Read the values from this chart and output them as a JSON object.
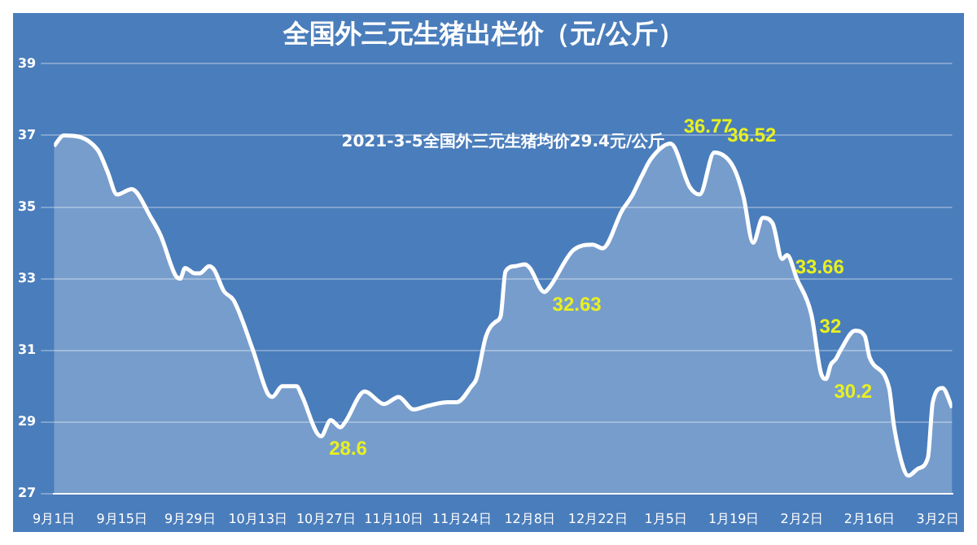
{
  "chart_data": {
    "type": "area",
    "title": "全国外三元生猪出栏价（元/公斤）",
    "annotations": [
      "2021-3-5全国外三元生猪均价29.4元/公斤",
      {
        "text": "28.6",
        "x": "2020-10-26",
        "y": 28.6
      },
      {
        "text": "32.63",
        "x": "2020-12-11",
        "y": 32.63
      },
      {
        "text": "36.77",
        "x": "2021-01-06",
        "y": 36.77
      },
      {
        "text": "36.52",
        "x": "2021-01-15",
        "y": 36.52
      },
      {
        "text": "33.66",
        "x": "2021-01-30",
        "y": 33.66
      },
      {
        "text": "32",
        "x": "2021-02-04",
        "y": 32
      },
      {
        "text": "30.2",
        "x": "2021-02-07",
        "y": 30.2
      }
    ],
    "x": [
      "2020-09-01",
      "2020-09-03",
      "2020-09-10",
      "2020-09-12",
      "2020-09-14",
      "2020-09-17",
      "2020-09-21",
      "2020-09-23",
      "2020-09-26",
      "2020-09-27",
      "2020-09-28",
      "2020-09-30",
      "2020-10-01",
      "2020-10-03",
      "2020-10-04",
      "2020-10-06",
      "2020-10-08",
      "2020-10-12",
      "2020-10-15",
      "2020-10-16",
      "2020-10-18",
      "2020-10-21",
      "2020-10-22",
      "2020-10-26",
      "2020-10-28",
      "2020-10-30",
      "2020-10-31",
      "2020-11-04",
      "2020-11-08",
      "2020-11-11",
      "2020-11-14",
      "2020-11-17",
      "2020-11-21",
      "2020-11-23",
      "2020-11-26",
      "2020-11-27",
      "2020-11-29",
      "2020-12-01",
      "2020-12-02",
      "2020-12-03",
      "2020-12-05",
      "2020-12-07",
      "2020-12-08",
      "2020-12-11",
      "2020-12-12",
      "2020-12-17",
      "2020-12-21",
      "2020-12-23",
      "2020-12-27",
      "2020-12-29",
      "2020-12-31",
      "2021-01-02",
      "2021-01-06",
      "2021-01-10",
      "2021-01-12",
      "2021-01-15",
      "2021-01-19",
      "2021-01-21",
      "2021-01-23",
      "2021-01-25",
      "2021-01-27",
      "2021-01-29",
      "2021-01-30",
      "2021-02-01",
      "2021-02-04",
      "2021-02-06",
      "2021-02-07",
      "2021-02-08",
      "2021-02-09",
      "2021-02-10",
      "2021-02-13",
      "2021-02-15",
      "2021-02-16",
      "2021-02-20",
      "2021-02-21",
      "2021-02-23",
      "2021-02-24",
      "2021-02-26",
      "2021-02-28",
      "2021-03-01",
      "2021-03-03",
      "2021-03-05"
    ],
    "series": [
      {
        "color": "#ffffff",
        "values": [
          36.7,
          37.0,
          36.6,
          36.0,
          35.35,
          35.5,
          34.7,
          34.2,
          33.1,
          33.0,
          33.3,
          33.15,
          33.15,
          33.35,
          33.25,
          32.65,
          32.4,
          31.0,
          29.8,
          29.7,
          30.0,
          30.0,
          29.75,
          28.6,
          29.05,
          28.85,
          29.0,
          29.85,
          29.5,
          29.7,
          29.35,
          29.45,
          29.55,
          29.55,
          30.0,
          30.2,
          31.4,
          31.8,
          31.95,
          33.2,
          33.35,
          33.4,
          33.3,
          32.63,
          32.75,
          33.8,
          33.95,
          33.85,
          34.9,
          35.3,
          35.85,
          36.35,
          36.77,
          35.55,
          35.35,
          36.52,
          36.1,
          35.3,
          34.0,
          34.7,
          34.55,
          33.55,
          33.66,
          33.0,
          32.0,
          30.35,
          30.2,
          30.6,
          30.75,
          31.0,
          31.55,
          31.4,
          30.8,
          29.95,
          28.9,
          27.7,
          27.5,
          27.7,
          28.0,
          29.55,
          29.95,
          29.4
        ]
      }
    ],
    "xlim": [
      "2020-09-01",
      "2021-03-05"
    ],
    "xticks": [
      {
        "value": "2020-09-01",
        "label": "9月1日"
      },
      {
        "value": "2020-09-15",
        "label": "9月15日"
      },
      {
        "value": "2020-09-29",
        "label": "9月29日"
      },
      {
        "value": "2020-10-13",
        "label": "10月13日"
      },
      {
        "value": "2020-10-27",
        "label": "10月27日"
      },
      {
        "value": "2020-11-10",
        "label": "11月10日"
      },
      {
        "value": "2020-11-24",
        "label": "11月24日"
      },
      {
        "value": "2020-12-08",
        "label": "12月8日"
      },
      {
        "value": "2020-12-22",
        "label": "12月22日"
      },
      {
        "value": "2021-01-05",
        "label": "1月5日"
      },
      {
        "value": "2021-01-19",
        "label": "1月19日"
      },
      {
        "value": "2021-02-02",
        "label": "2月2日"
      },
      {
        "value": "2021-02-16",
        "label": "2月16日"
      },
      {
        "value": "2021-03-02",
        "label": "3月2日"
      }
    ],
    "ylim": [
      27,
      39
    ],
    "yticks": [
      27,
      29,
      31,
      33,
      35,
      37,
      39
    ],
    "grid": "y",
    "legend": false,
    "marker": "none",
    "line_style": "solid"
  }
}
